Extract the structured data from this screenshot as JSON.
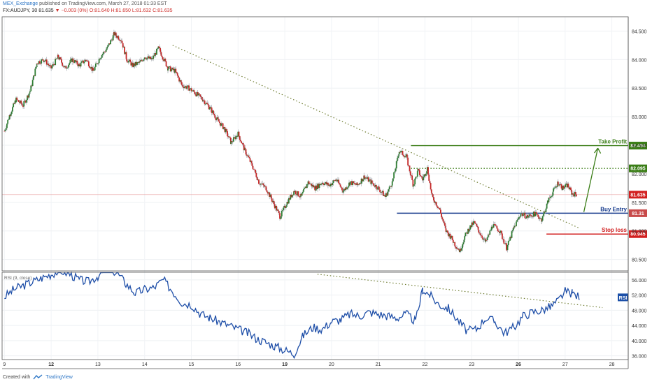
{
  "header": {
    "line1_author": "MEX_Exchange",
    "line1_rest": "published on TradingView.com, March 27, 2018 01:33 EST",
    "line2_symbol": "FX:AUDJPY, 30",
    "line2_last": "81.635",
    "line2_change_arrow": "▼",
    "line2_change": "−0.003 (0%)",
    "line2_ohlc": "O:81.640 H:81.650 L:81.632 C:81.635"
  },
  "footer": {
    "created_with": "Created with",
    "brand": "TradingView"
  },
  "colors": {
    "up": "#2e7d32",
    "down": "#c62828",
    "rsi": "#1f4fa8",
    "target": "#3a7d16",
    "entry": "#1b3f8f",
    "stop": "#d21f1f",
    "trend": "#6f7d32"
  },
  "chart_data": [
    {
      "type": "line",
      "pane": "price",
      "y_ticks": [
        "84.500",
        "84.000",
        "83.500",
        "83.000",
        "82.500",
        "82.000",
        "81.500",
        "81.000",
        "80.500"
      ],
      "ylim": [
        80.3,
        84.75
      ],
      "x_tick_labels": [
        "9",
        "12",
        "13",
        "14",
        "15",
        "16",
        "19",
        "20",
        "21",
        "22",
        "23",
        "26",
        "27",
        "28"
      ],
      "x_ticks": [
        0,
        1,
        2,
        3,
        4,
        5,
        6,
        7,
        8,
        9,
        10,
        11,
        12,
        13
      ],
      "xlim": [
        -0.05,
        13.35
      ],
      "series": [
        {
          "x": [
            0,
            0.12,
            0.25,
            0.4,
            0.55,
            0.7,
            0.85,
            1.0,
            1.15,
            1.3,
            1.45,
            1.6,
            1.75,
            1.9,
            2.05,
            2.2,
            2.35,
            2.5,
            2.62,
            2.75,
            2.9,
            3.0,
            3.15,
            3.3,
            3.5,
            3.65,
            3.8,
            3.95,
            4.1,
            4.25,
            4.4,
            4.55,
            4.7,
            4.85,
            5.0,
            5.15,
            5.3,
            5.45,
            5.6,
            5.75,
            5.9,
            6.05,
            6.2,
            6.35,
            6.5,
            6.65,
            6.8,
            6.95,
            7.1,
            7.25,
            7.4,
            7.55,
            7.7,
            7.85,
            8.0,
            8.15,
            8.3,
            8.45,
            8.6,
            8.75,
            8.85,
            8.95,
            9.05,
            9.15,
            9.3,
            9.45,
            9.55,
            9.65,
            9.75,
            9.85,
            9.95,
            10.05,
            10.15,
            10.3,
            10.45,
            10.6,
            10.75,
            10.9,
            11.05,
            11.2,
            11.35,
            11.5,
            11.65,
            11.75,
            11.85,
            11.95,
            12.05,
            12.15,
            12.25
          ],
          "values": [
            82.75,
            83.05,
            83.3,
            83.2,
            83.45,
            83.95,
            84.0,
            83.85,
            84.05,
            83.85,
            84.0,
            83.9,
            84.0,
            83.8,
            84.05,
            84.2,
            84.45,
            84.35,
            84.0,
            83.9,
            83.95,
            84.05,
            84.0,
            84.2,
            83.85,
            83.8,
            83.55,
            83.5,
            83.4,
            83.3,
            83.15,
            82.95,
            82.8,
            82.55,
            82.7,
            82.4,
            82.15,
            81.85,
            81.75,
            81.5,
            81.25,
            81.5,
            81.7,
            81.6,
            81.85,
            81.75,
            81.85,
            81.8,
            81.9,
            81.7,
            81.85,
            81.8,
            81.95,
            81.85,
            81.75,
            81.6,
            81.85,
            82.4,
            82.3,
            81.8,
            82.05,
            81.9,
            82.1,
            81.6,
            81.4,
            81.0,
            80.9,
            80.75,
            80.65,
            80.9,
            81.05,
            81.15,
            81.0,
            80.8,
            81.1,
            81.0,
            80.7,
            81.05,
            81.3,
            81.25,
            81.3,
            81.2,
            81.55,
            81.7,
            81.85,
            81.75,
            81.8,
            81.65,
            81.635
          ],
          "style": "candles"
        }
      ],
      "annotations": {
        "take_profit": {
          "label": "Take Profit",
          "price": 82.494,
          "price_label": "82.494"
        },
        "resistance": {
          "price": 82.095,
          "price_label": "82.095"
        },
        "last": {
          "price": 81.635,
          "price_label": "81.635"
        },
        "buy_entry": {
          "label": "Buy Entry",
          "price": 81.31,
          "price_label": "81.31"
        },
        "stop_loss": {
          "label": "Stop loss",
          "price": 80.945,
          "price_label": "80.945"
        }
      }
    },
    {
      "type": "line",
      "pane": "rsi",
      "indicator_label": "RSI (9, close)",
      "badge": "RSI",
      "y_ticks": [
        "56.000",
        "52.000",
        "48.000",
        "44.000",
        "40.000",
        "36.000"
      ],
      "ylim": [
        35,
        58
      ],
      "series": [
        {
          "name": "RSI",
          "x": [
            0,
            0.2,
            0.4,
            0.6,
            0.8,
            1.0,
            1.2,
            1.4,
            1.6,
            1.8,
            2.0,
            2.2,
            2.4,
            2.6,
            2.8,
            3.0,
            3.2,
            3.4,
            3.6,
            3.8,
            4.0,
            4.2,
            4.4,
            4.6,
            4.8,
            5.0,
            5.2,
            5.4,
            5.6,
            5.8,
            6.0,
            6.2,
            6.4,
            6.6,
            6.8,
            7.0,
            7.2,
            7.4,
            7.6,
            7.8,
            8.0,
            8.2,
            8.4,
            8.6,
            8.8,
            8.95,
            9.1,
            9.3,
            9.5,
            9.7,
            9.9,
            10.1,
            10.3,
            10.5,
            10.7,
            10.9,
            11.1,
            11.3,
            11.5,
            11.7,
            11.85,
            12.0,
            12.15,
            12.3
          ],
          "values": [
            51.5,
            53.5,
            54.5,
            55.5,
            56.5,
            57.5,
            58.5,
            57.5,
            56.0,
            55.5,
            57.0,
            59.0,
            58.0,
            55.0,
            52.5,
            53.5,
            54.0,
            56.0,
            53.0,
            50.0,
            49.5,
            47.0,
            46.0,
            45.0,
            44.0,
            43.0,
            42.0,
            40.5,
            39.5,
            38.5,
            37.5,
            36.5,
            41.5,
            43.5,
            43.0,
            45.0,
            45.5,
            47.0,
            46.5,
            47.5,
            47.0,
            46.5,
            46.0,
            47.0,
            45.0,
            53.5,
            52.0,
            49.5,
            48.5,
            45.5,
            42.5,
            43.0,
            46.0,
            45.0,
            42.0,
            43.5,
            46.5,
            47.5,
            48.0,
            49.0,
            50.5,
            53.0,
            52.5,
            51.5
          ]
        }
      ]
    }
  ]
}
